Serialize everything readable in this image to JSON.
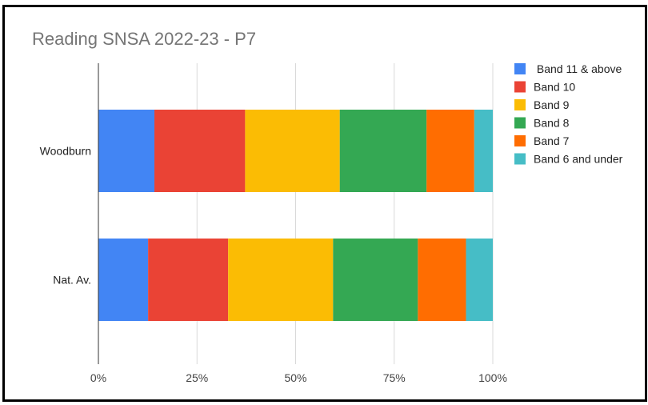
{
  "chart_data": {
    "type": "bar",
    "orientation": "horizontal",
    "stacked": "percent",
    "title": "Reading SNSA 2022-23 - P7",
    "categories": [
      "Woodburn",
      "Nat. Av."
    ],
    "series": [
      {
        "name": " Band 11 & above",
        "color": "#4285F4",
        "values": [
          14.2,
          12.6
        ]
      },
      {
        "name": "Band 10",
        "color": "#EA4335",
        "values": [
          23.0,
          20.3
        ]
      },
      {
        "name": "Band 9",
        "color": "#FBBC04",
        "values": [
          24.0,
          26.6
        ]
      },
      {
        "name": "Band 8",
        "color": "#34A853",
        "values": [
          22.0,
          21.5
        ]
      },
      {
        "name": "Band 7",
        "color": "#FF6D01",
        "values": [
          12.1,
          12.2
        ]
      },
      {
        "name": "Band 6 and under",
        "color": "#46BDC6",
        "values": [
          4.7,
          6.8
        ]
      }
    ],
    "x_ticks": [
      "0%",
      "25%",
      "50%",
      "75%",
      "100%"
    ],
    "xlim": [
      0,
      100
    ],
    "grid": true,
    "legend_position": "right"
  }
}
